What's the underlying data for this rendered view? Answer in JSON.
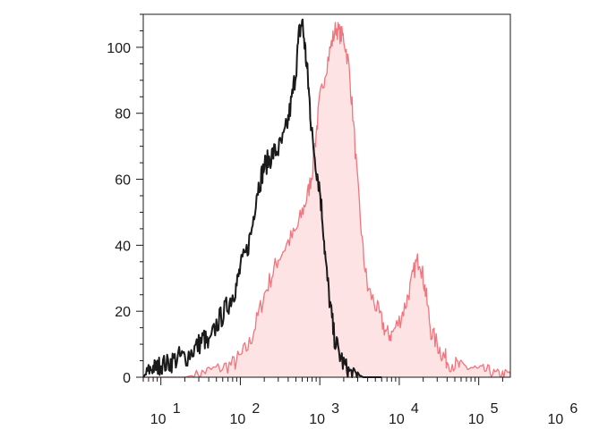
{
  "chart_data": {
    "type": "area",
    "title": "",
    "xlabel": "",
    "ylabel": "",
    "x_scale": "log",
    "xlim": [
      6,
      250000
    ],
    "ylim": [
      0,
      110
    ],
    "y_ticks": [
      0,
      20,
      40,
      60,
      80,
      100
    ],
    "x_ticks": [
      {
        "value": 10,
        "base": "10",
        "exp": "1"
      },
      {
        "value": 100,
        "base": "10",
        "exp": "2"
      },
      {
        "value": 1000,
        "base": "10",
        "exp": "3"
      },
      {
        "value": 10000,
        "base": "10",
        "exp": "4"
      },
      {
        "value": 100000,
        "base": "10",
        "exp": "5"
      },
      {
        "value": 1000000,
        "base": "10",
        "exp": "6"
      }
    ],
    "grid": false,
    "legend": "none",
    "series": [
      {
        "style": "filled",
        "color": "#f2747d",
        "fill": "#fde3e4",
        "x": [
          6,
          8,
          10,
          14,
          20,
          30,
          40,
          60,
          80,
          100,
          130,
          160,
          200,
          250,
          300,
          400,
          500,
          600,
          700,
          800,
          900,
          1000,
          1200,
          1400,
          1600,
          1800,
          2000,
          2300,
          2600,
          3000,
          3500,
          4000,
          5000,
          6000,
          7000,
          8000,
          10000,
          12000,
          14000,
          16000,
          18000,
          20000,
          22000,
          25000,
          30000,
          35000,
          40000,
          50000,
          60000,
          80000,
          100000,
          130000,
          160000,
          200000,
          250000
        ],
        "y": [
          0,
          0,
          0,
          0,
          0,
          1,
          2,
          3,
          4,
          6,
          10,
          17,
          25,
          31,
          36,
          41,
          44,
          50,
          55,
          62,
          74,
          84,
          94,
          101,
          106,
          104,
          103,
          95,
          80,
          58,
          38,
          27,
          22,
          17,
          13,
          13,
          17,
          22,
          28,
          34,
          36,
          30,
          24,
          14,
          10,
          7,
          5,
          4,
          3,
          3,
          2,
          2,
          1,
          1,
          1
        ]
      },
      {
        "style": "line",
        "color": "#1a1a1a",
        "x": [
          6,
          7,
          8,
          9,
          10,
          12,
          14,
          17,
          20,
          25,
          30,
          35,
          40,
          50,
          60,
          70,
          80,
          90,
          100,
          120,
          140,
          160,
          180,
          200,
          230,
          260,
          300,
          350,
          400,
          450,
          500,
          550,
          600,
          650,
          700,
          750,
          800,
          900,
          1000,
          1100,
          1200,
          1350,
          1500,
          1700,
          2000,
          2300,
          2600,
          3000,
          3500,
          4000,
          5000,
          6000
        ],
        "y": [
          0,
          2,
          3,
          3,
          4,
          4,
          5,
          6,
          6,
          8,
          10,
          12,
          9,
          16,
          19,
          22,
          25,
          28,
          33,
          38,
          45,
          56,
          60,
          64,
          66,
          68,
          69,
          72,
          78,
          85,
          93,
          104,
          108,
          100,
          92,
          82,
          73,
          64,
          57,
          46,
          33,
          22,
          13,
          8,
          4,
          2,
          1,
          1,
          0,
          0,
          0,
          0
        ]
      }
    ]
  }
}
